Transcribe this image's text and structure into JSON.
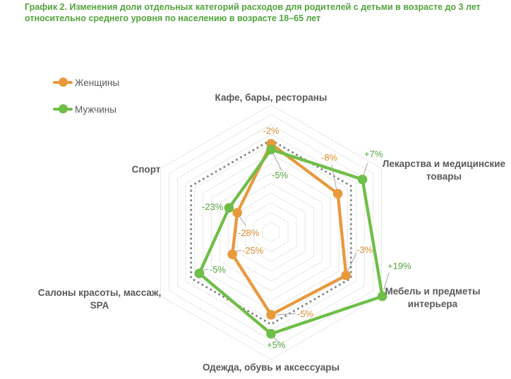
{
  "title": {
    "text": "График 2. Изменения доли отдельных категорий расходов для родителей с детьми в возрасте до 3 лет относительно среднего уровня по населению в возрасте 18–65 лет"
  },
  "legend": [
    {
      "label": "Женщины",
      "color": "#E8993C"
    },
    {
      "label": "Мужчины",
      "color": "#6FBE47"
    }
  ],
  "colors": {
    "title_green": "#52A43C",
    "label_gray": "#595959",
    "grid_gray": "#E8E8E8",
    "reference_dotted_gray": "#7F7F7F",
    "leader_gray": "#A6A6A6"
  },
  "chart_data": {
    "type": "radar",
    "unit": "%",
    "categories": [
      "Кафе, бары, рестораны",
      "Лекарства и медицинские товары",
      "Мебель и предметы интерьера",
      "Одежда, обувь и аксессуары",
      "Салоны красоты, массаж, SPA",
      "Спорт"
    ],
    "series": [
      {
        "name": "Женщины",
        "color": "#E8993C",
        "values": [
          -2,
          -8,
          -3,
          -5,
          -25,
          -28
        ],
        "labels": [
          "-2%",
          "-8%",
          "-3%",
          "-5%",
          "-25%",
          "-28%"
        ]
      },
      {
        "name": "Мужчины",
        "color": "#6FBE47",
        "values": [
          -5,
          7,
          19,
          5,
          -5,
          -23
        ],
        "labels": [
          "-5%",
          "+7%",
          "+19%",
          "+5%",
          "-5%",
          "-23%"
        ]
      }
    ],
    "scale": {
      "min": -50,
      "max": 20,
      "ring_step": 5,
      "reference_value": 0
    },
    "grid": "concentric-hexagons",
    "reference_style": "dotted-hexagon-at-0",
    "legend_position": "top-left"
  }
}
